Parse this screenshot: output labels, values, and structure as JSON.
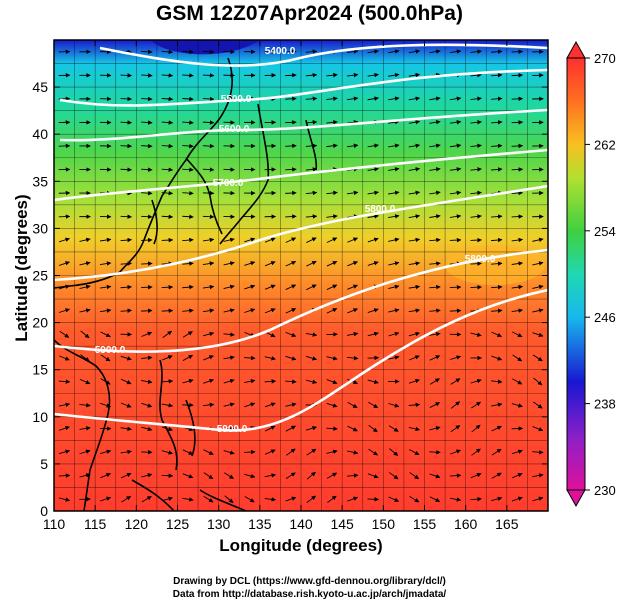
{
  "title": "GSM 12Z07Apr2024 (500.0hPa)",
  "xaxis": {
    "label": "Longitude (degrees)",
    "range": [
      110,
      170
    ],
    "ticks": [
      110,
      115,
      120,
      125,
      130,
      135,
      140,
      145,
      150,
      155,
      160,
      165
    ]
  },
  "yaxis": {
    "label": "Latitude  (degrees)",
    "range": [
      0,
      50
    ],
    "ticks": [
      0,
      5,
      10,
      15,
      20,
      25,
      30,
      35,
      40,
      45
    ]
  },
  "colorbar": {
    "min": 230,
    "max": 270,
    "ticks": [
      230,
      238,
      246,
      254,
      262,
      270
    ]
  },
  "contour_labels": [
    "5400.0",
    "5500.0",
    "5600.0",
    "5700.0",
    "5800.0",
    "5900.0",
    "5900.0",
    "5800.0"
  ],
  "credits": {
    "line1": "Drawing by DCL (https://www.gfd-dennou.org/library/dcl/)",
    "line2": "Data from http://database.rish.kyoto-u.ac.jp/arch/jmadata/"
  },
  "colors": {
    "cold": "#0000c8",
    "warm": "#ff3c28",
    "contour": "#ffffff",
    "coast": "#000000"
  }
}
